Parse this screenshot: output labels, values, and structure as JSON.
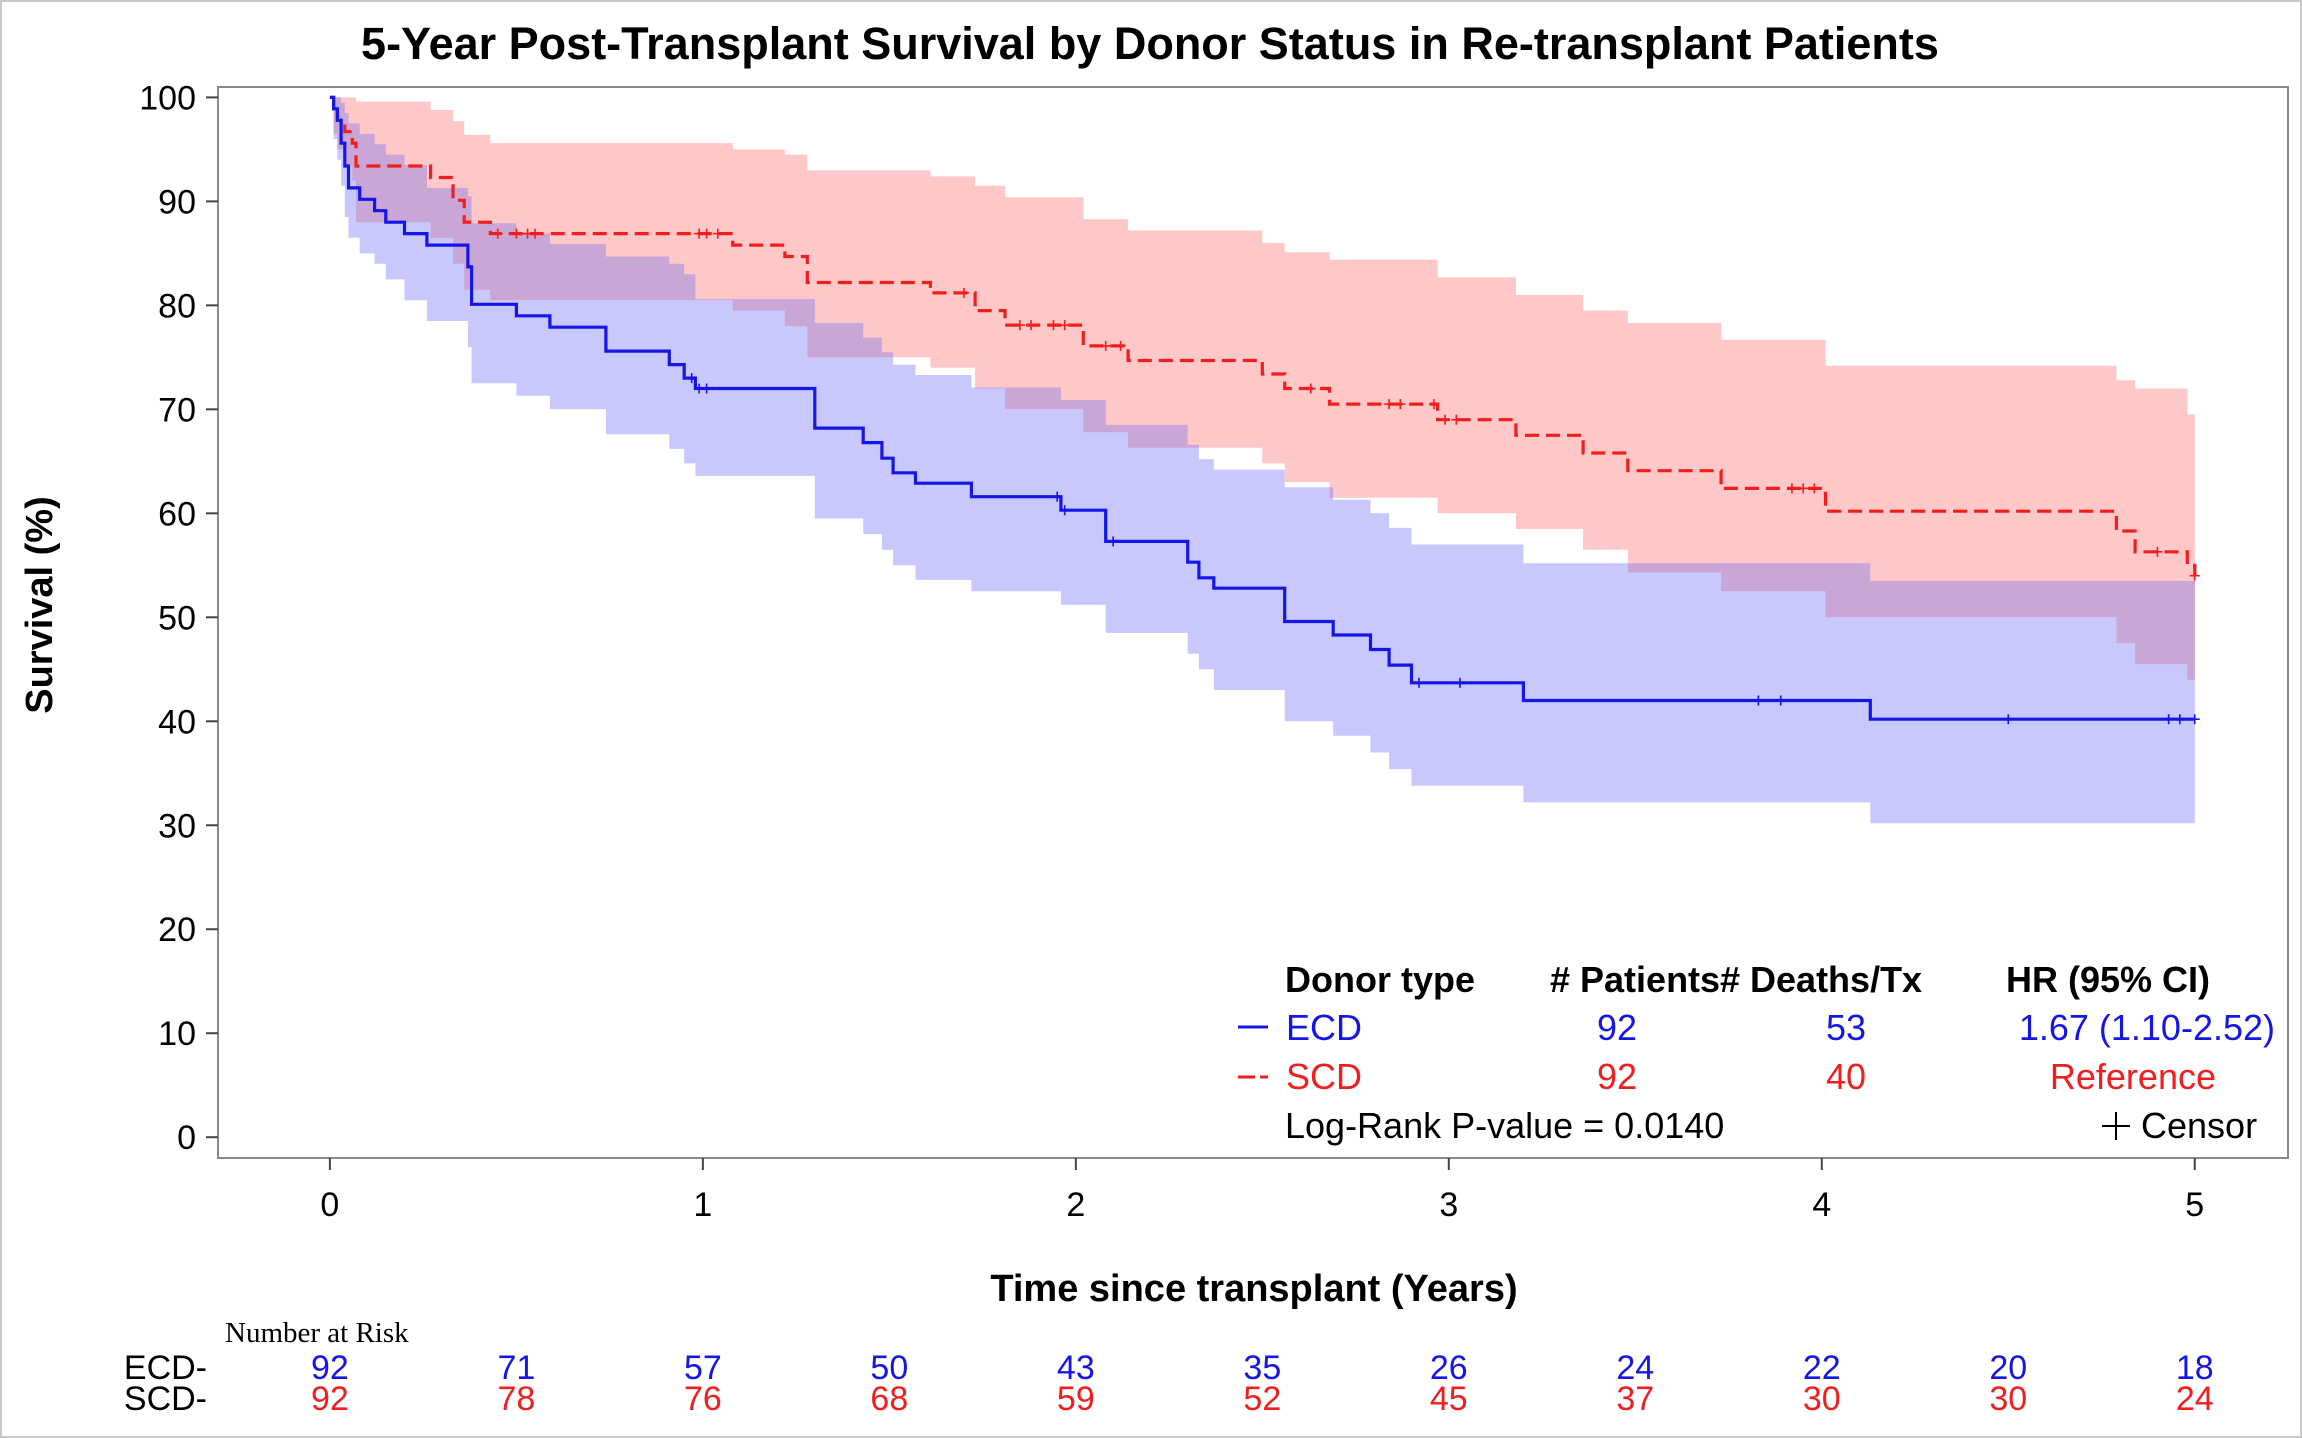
{
  "chart_data": {
    "type": "line",
    "subtype": "kaplan-meier",
    "title": "5-Year Post-Transplant Survival by Donor Status in Re-transplant Patients",
    "xlabel": "Time since transplant (Years)",
    "ylabel": "Survival (%)",
    "xlim": [
      -0.3,
      5.25
    ],
    "ylim": [
      -2,
      101
    ],
    "xticks": [
      0,
      1,
      2,
      3,
      4,
      5
    ],
    "yticks": [
      0,
      10,
      20,
      30,
      40,
      50,
      60,
      70,
      80,
      90,
      100
    ],
    "grid": false,
    "colors": {
      "ECD": "#1515e8",
      "SCD": "#f21d1d",
      "ECD_band": "#c8c8fc",
      "SCD_band": "#ffc8c8",
      "overlap_band": "#c9a6d6"
    },
    "series": [
      {
        "name": "ECD",
        "style": "solid",
        "x": [
          0,
          0.01,
          0.02,
          0.03,
          0.04,
          0.05,
          0.08,
          0.12,
          0.15,
          0.2,
          0.26,
          0.37,
          0.38,
          0.5,
          0.59,
          0.74,
          0.91,
          0.95,
          0.98,
          1.0,
          1.3,
          1.33,
          1.43,
          1.48,
          1.51,
          1.57,
          1.72,
          1.94,
          1.96,
          2.08,
          2.3,
          2.33,
          2.37,
          2.55,
          2.56,
          2.69,
          2.79,
          2.84,
          2.9,
          3.2,
          4.13,
          5.0
        ],
        "y": [
          100,
          98.9,
          97.8,
          95.6,
          93.4,
          91.3,
          90.2,
          89.1,
          88.0,
          86.9,
          85.8,
          83.7,
          80.1,
          79.0,
          77.9,
          75.6,
          74.3,
          73.0,
          72.0,
          72.0,
          68.2,
          68.2,
          66.8,
          65.3,
          63.9,
          62.9,
          61.6,
          61.6,
          60.3,
          57.3,
          55.3,
          53.8,
          52.8,
          52.8,
          49.6,
          48.3,
          46.9,
          45.4,
          43.7,
          42.0,
          40.2,
          40.2
        ],
        "upper": [
          100,
          100,
          100,
          99.5,
          98.5,
          97.5,
          96.5,
          95.5,
          94.5,
          93.5,
          91.3,
          90.5,
          87.9,
          86.9,
          85.9,
          84.7,
          84.0,
          83.0,
          80.6,
          80.6,
          78.3,
          78.3,
          76.9,
          75.5,
          74.3,
          73.3,
          72.1,
          72.1,
          70.9,
          68.5,
          66.6,
          65.2,
          64.2,
          64.2,
          62.5,
          61.3,
          60.0,
          58.6,
          57.0,
          55.2,
          53.5,
          53.5
        ],
        "lower": [
          100,
          96.0,
          94.0,
          91.5,
          88.5,
          86.5,
          85.0,
          84.0,
          82.5,
          80.5,
          78.5,
          76.0,
          72.5,
          71.3,
          70.0,
          67.6,
          66.2,
          64.8,
          63.6,
          63.6,
          59.5,
          59.5,
          58.0,
          56.5,
          55.0,
          53.6,
          52.5,
          52.5,
          51.2,
          48.5,
          46.5,
          45.0,
          43.0,
          43.0,
          40.0,
          38.6,
          37.0,
          35.4,
          33.8,
          32.2,
          30.2,
          30.2
        ],
        "censor_x": [
          0.97,
          0.99,
          1.01,
          1.95,
          1.97,
          2.1,
          2.92,
          3.03,
          3.83,
          3.89,
          4.5,
          4.93,
          4.96,
          5.0
        ],
        "legend": {
          "label": "ECD",
          "patients": "92",
          "deaths": "53",
          "hr": "1.67 (1.10-2.52)"
        },
        "at_risk": [
          92,
          71,
          57,
          50,
          43,
          35,
          26,
          24,
          22,
          20,
          18
        ]
      },
      {
        "name": "SCD",
        "style": "dashed",
        "x": [
          0,
          0.01,
          0.02,
          0.04,
          0.06,
          0.07,
          0.27,
          0.33,
          0.36,
          0.43,
          0.48,
          1.08,
          1.22,
          1.28,
          1.61,
          1.73,
          1.81,
          2.02,
          2.14,
          2.5,
          2.56,
          2.68,
          2.97,
          3.18,
          3.36,
          3.48,
          3.73,
          4.01,
          4.79,
          4.84,
          4.98,
          5.0
        ],
        "y": [
          100,
          98.9,
          97.8,
          96.7,
          95.6,
          93.4,
          92.3,
          90.1,
          88.0,
          86.9,
          86.9,
          85.8,
          84.7,
          82.2,
          81.2,
          79.5,
          78.1,
          76.1,
          74.7,
          73.4,
          72.0,
          70.5,
          69.0,
          67.5,
          65.8,
          64.1,
          62.4,
          60.2,
          58.3,
          56.3,
          55.0,
          54.0
        ],
        "upper": [
          100,
          100,
          100,
          100,
          100,
          99.6,
          98.8,
          97.7,
          96.4,
          95.6,
          95.6,
          95.0,
          94.5,
          93.0,
          92.4,
          91.5,
          90.4,
          88.3,
          87.2,
          86.0,
          85.1,
          84.4,
          82.7,
          81.0,
          79.5,
          78.3,
          76.7,
          74.2,
          72.8,
          72.0,
          69.5,
          69.5
        ],
        "lower": [
          100,
          96.5,
          95.0,
          93.5,
          92.0,
          88.0,
          86.5,
          84.0,
          81.5,
          80.5,
          80.5,
          79.5,
          78.0,
          75.0,
          74.0,
          72.0,
          70.0,
          67.8,
          66.3,
          64.8,
          63.0,
          61.5,
          60.0,
          58.5,
          56.5,
          54.3,
          52.5,
          50.0,
          47.5,
          45.5,
          44.0,
          43.0
        ],
        "censor_x": [
          0.45,
          0.5,
          0.53,
          0.55,
          0.99,
          1.01,
          1.04,
          1.7,
          1.85,
          1.88,
          1.94,
          1.97,
          2.08,
          2.12,
          2.63,
          2.84,
          2.87,
          2.96,
          2.99,
          3.02,
          3.92,
          3.95,
          3.98,
          4.9,
          5.0
        ],
        "legend": {
          "label": "SCD",
          "patients": "92",
          "deaths": "40",
          "hr": "Reference"
        },
        "at_risk": [
          92,
          78,
          76,
          68,
          59,
          52,
          45,
          37,
          30,
          30,
          24
        ]
      }
    ],
    "legend": {
      "placement": "bottom-right inside plot",
      "headers": [
        "Donor type",
        "# Patients",
        "# Deaths/Tx",
        "HR (95% CI)"
      ],
      "pvalue_text": "Log-Rank P-value = 0.0140",
      "censor_text": "Censor"
    },
    "risk_table": {
      "title": "Number at Risk",
      "times": [
        0,
        0.5,
        1,
        1.5,
        2,
        2.5,
        3,
        3.5,
        4,
        4.5,
        5
      ],
      "row_labels": [
        "ECD-",
        "SCD-"
      ]
    }
  }
}
